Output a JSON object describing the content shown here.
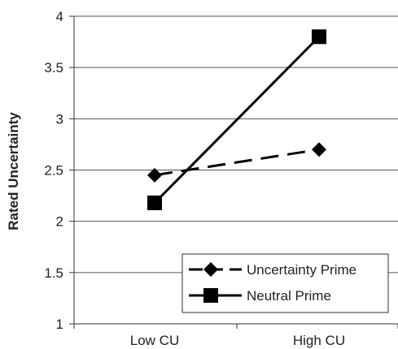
{
  "chart_data": {
    "type": "line",
    "title": "",
    "xlabel": "",
    "ylabel": "Rated Uncertainty",
    "categories": [
      "Low CU",
      "High CU"
    ],
    "ylim": [
      1,
      4
    ],
    "yticks": [
      "1",
      "1.5",
      "2",
      "2.5",
      "3",
      "3.5",
      "4"
    ],
    "grid": "horizontal",
    "legend_position": "bottom-right",
    "series": [
      {
        "name": "Uncertainty Prime",
        "values": [
          2.45,
          2.7
        ],
        "line": "dashed",
        "marker": "diamond",
        "color": "#000000"
      },
      {
        "name": "Neutral Prime",
        "values": [
          2.18,
          3.8
        ],
        "line": "solid",
        "marker": "square",
        "color": "#000000"
      }
    ]
  }
}
